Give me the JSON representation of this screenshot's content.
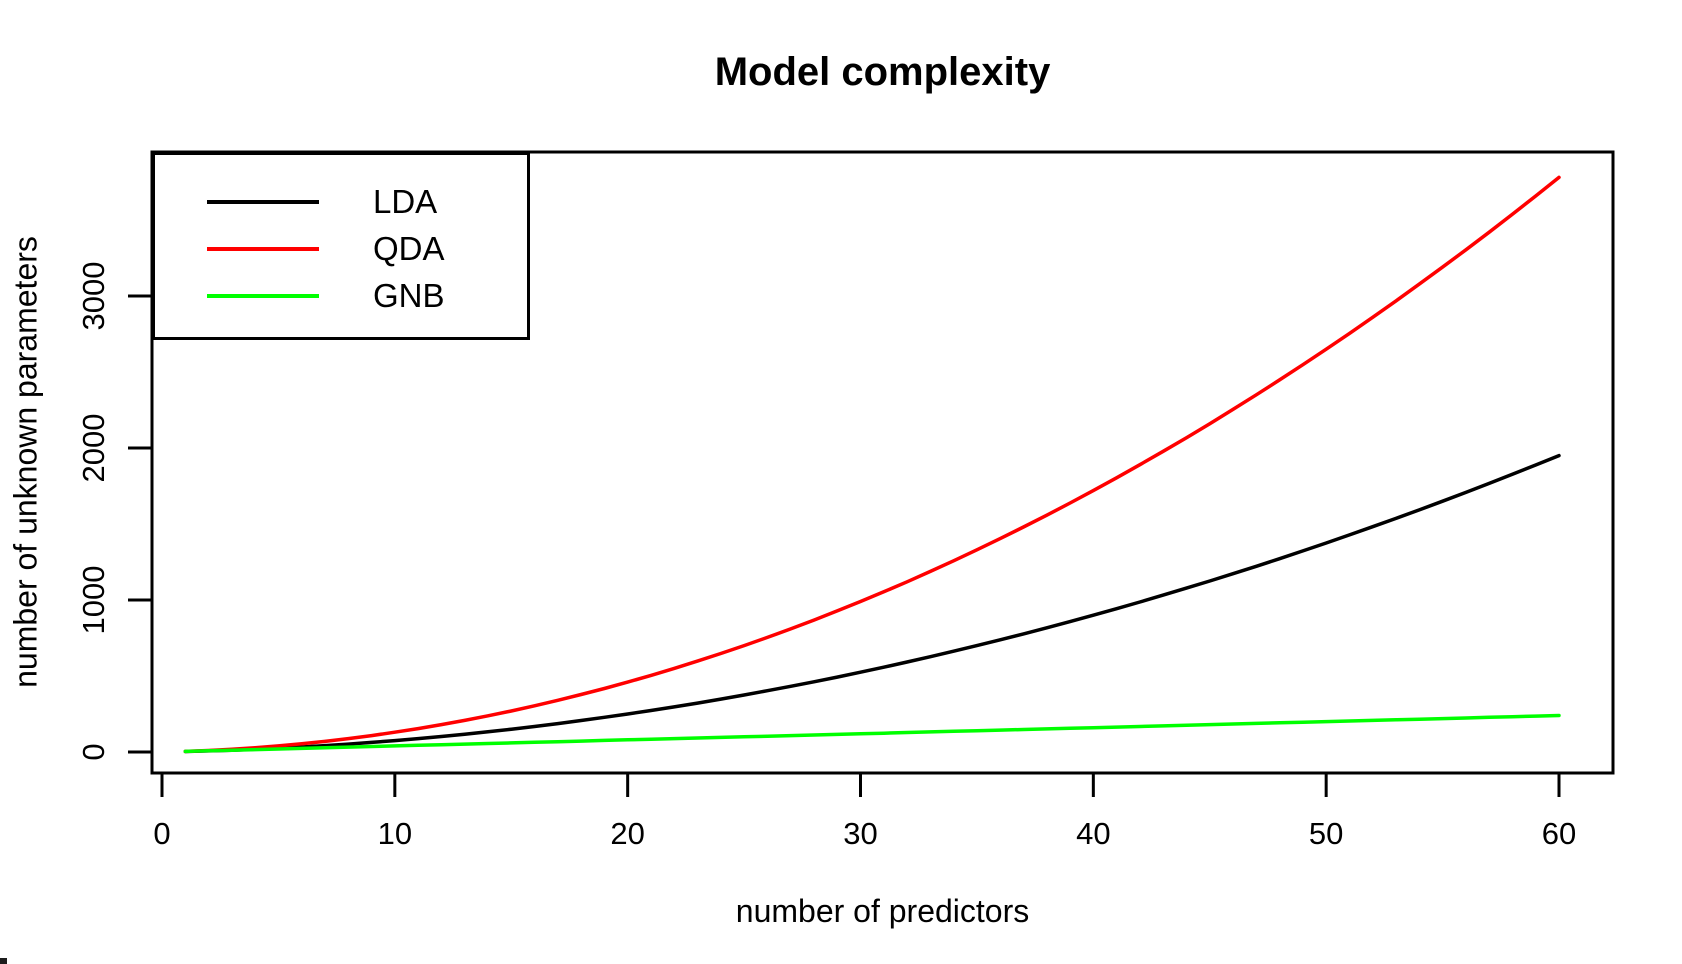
{
  "chart": {
    "title": "Model complexity",
    "xlabel": "number of predictors",
    "ylabel": "number of unknown parameters"
  },
  "chart_data": {
    "type": "line",
    "title": "Model complexity",
    "xlabel": "number of predictors",
    "ylabel": "number of unknown parameters",
    "x_ticks": [
      0,
      10,
      20,
      30,
      40,
      50,
      60
    ],
    "y_ticks": [
      0,
      1000,
      2000,
      3000
    ],
    "xlim": [
      0,
      62
    ],
    "ylim": [
      0,
      3947
    ],
    "grid": false,
    "legend_position": "topleft",
    "x": [
      1,
      2,
      3,
      4,
      5,
      6,
      7,
      8,
      9,
      10,
      11,
      12,
      13,
      14,
      15,
      16,
      17,
      18,
      19,
      20,
      21,
      22,
      23,
      24,
      25,
      26,
      27,
      28,
      29,
      30,
      31,
      32,
      33,
      34,
      35,
      36,
      37,
      38,
      39,
      40,
      41,
      42,
      43,
      44,
      45,
      46,
      47,
      48,
      49,
      50,
      51,
      52,
      53,
      54,
      55,
      56,
      57,
      58,
      59,
      60
    ],
    "series": [
      {
        "name": "LDA",
        "color": "#000000",
        "values": [
          3,
          7,
          12,
          18,
          25,
          33,
          42,
          52,
          63,
          75,
          88,
          102,
          117,
          133,
          150,
          168,
          187,
          207,
          228,
          250,
          273,
          297,
          322,
          348,
          375,
          403,
          432,
          462,
          493,
          525,
          558,
          592,
          627,
          663,
          700,
          738,
          777,
          817,
          858,
          900,
          943,
          987,
          1032,
          1078,
          1125,
          1173,
          1222,
          1272,
          1323,
          1375,
          1428,
          1482,
          1537,
          1593,
          1650,
          1708,
          1767,
          1827,
          1888,
          1950
        ]
      },
      {
        "name": "QDA",
        "color": "#ff0000",
        "values": [
          4,
          10,
          18,
          28,
          40,
          54,
          70,
          88,
          108,
          130,
          154,
          180,
          208,
          238,
          270,
          304,
          340,
          378,
          418,
          460,
          504,
          550,
          598,
          648,
          700,
          754,
          810,
          868,
          928,
          990,
          1054,
          1120,
          1188,
          1258,
          1330,
          1404,
          1480,
          1558,
          1638,
          1720,
          1804,
          1890,
          1978,
          2068,
          2160,
          2254,
          2350,
          2448,
          2548,
          2650,
          2754,
          2860,
          2968,
          3078,
          3190,
          3304,
          3420,
          3538,
          3658,
          3780
        ]
      },
      {
        "name": "GNB",
        "color": "#00ff00",
        "values": [
          4,
          8,
          12,
          16,
          20,
          24,
          28,
          32,
          36,
          40,
          44,
          48,
          52,
          56,
          60,
          64,
          68,
          72,
          76,
          80,
          84,
          88,
          92,
          96,
          100,
          104,
          108,
          112,
          116,
          120,
          124,
          128,
          132,
          136,
          140,
          144,
          148,
          152,
          156,
          160,
          164,
          168,
          172,
          176,
          180,
          184,
          188,
          192,
          196,
          200,
          204,
          208,
          212,
          216,
          220,
          224,
          228,
          232,
          236,
          240
        ]
      }
    ]
  }
}
